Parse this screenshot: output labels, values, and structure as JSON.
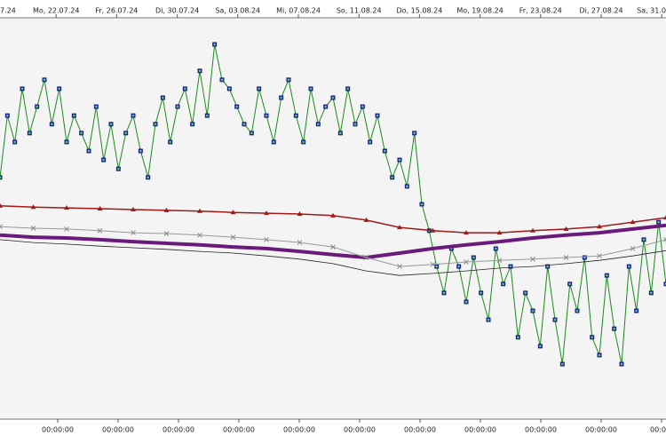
{
  "chart_data": {
    "type": "line",
    "top_axis_labels": [
      "7.24",
      "Mo, 22.07.24",
      "Fr, 26.07.24",
      "Di, 30.07.24",
      "Sa, 03.08.24",
      "Mi, 07.08.24",
      "So, 11.08.24",
      "Do, 15.08.24",
      "Mo, 19.08.24",
      "Fr, 23.08.24",
      "Di, 27.08.24",
      "Sa, 31.0"
    ],
    "bottom_axis_labels": [
      "00:00:00",
      "00:00:00",
      "00:00:00",
      "00:00:00",
      "00:00:00",
      "00:00:00",
      "00:00:00",
      "00:00:00",
      "00:00:00",
      "00:00:00",
      "00:0"
    ],
    "ylim": [
      0,
      100
    ],
    "series": [
      {
        "color": "#1a8a1a",
        "marker": "square",
        "marker_color": "#1a1aa0",
        "width": 1,
        "values": [
          59.0,
          74.2,
          67.7,
          80.8,
          69.9,
          76.4,
          83.0,
          72.1,
          80.8,
          67.7,
          74.2,
          69.9,
          65.5,
          76.4,
          63.3,
          72.1,
          61.1,
          69.9,
          74.2,
          65.5,
          59.0,
          72.1,
          78.6,
          67.7,
          76.4,
          80.8,
          72.1,
          85.2,
          74.2,
          91.7,
          83.0,
          80.8,
          76.4,
          72.1,
          69.9,
          80.8,
          74.2,
          67.7,
          78.6,
          83.0,
          74.2,
          67.7,
          80.8,
          72.1,
          76.4,
          78.6,
          69.9,
          80.8,
          72.1,
          76.4,
          67.7,
          74.2,
          65.5,
          59.0,
          63.3,
          56.8,
          69.9,
          52.4,
          45.9,
          37.1,
          30.6,
          41.5,
          37.1,
          28.4,
          39.3,
          30.6,
          24.0,
          41.5,
          32.8,
          37.1,
          19.7,
          30.6,
          26.2,
          17.5,
          37.1,
          24.0,
          13.1,
          32.8,
          26.2,
          39.3,
          19.7,
          15.3,
          34.9,
          21.8,
          13.1,
          37.1,
          26.2,
          43.7,
          30.6,
          48.0,
          32.8
        ]
      },
      {
        "color": "#a01818",
        "marker": "triangle",
        "marker_color": "#a01818",
        "width": 1.5,
        "values": [
          52.0,
          51.7,
          51.5,
          51.3,
          51.1,
          50.9,
          50.7,
          50.4,
          50.2,
          50.0,
          49.6,
          48.5,
          46.7,
          45.9,
          45.4,
          45.4,
          45.9,
          46.3,
          46.9,
          48.0,
          49.1
        ]
      },
      {
        "color": "#6a1a7a",
        "marker": "none",
        "marker_color": "#6a1a7a",
        "width": 4,
        "values": [
          44.8,
          44.3,
          44.1,
          43.7,
          43.2,
          42.8,
          42.4,
          41.9,
          41.5,
          40.8,
          40.0,
          39.3,
          40.4,
          41.5,
          42.4,
          43.2,
          44.1,
          44.8,
          45.4,
          46.3,
          47.2
        ]
      },
      {
        "color": "#999999",
        "marker": "cross",
        "marker_color": "#888888",
        "width": 1,
        "values": [
          46.9,
          46.5,
          46.3,
          45.9,
          45.4,
          45.2,
          44.8,
          44.3,
          43.7,
          43.0,
          41.9,
          39.3,
          37.1,
          37.6,
          38.2,
          38.6,
          38.9,
          39.3,
          39.7,
          41.5,
          43.7
        ]
      },
      {
        "color": "#222222",
        "marker": "none",
        "marker_color": "#222222",
        "width": 0.8,
        "values": [
          43.7,
          43.0,
          42.6,
          42.1,
          41.7,
          41.3,
          40.8,
          40.4,
          39.7,
          38.9,
          37.8,
          36.0,
          34.9,
          35.4,
          36.0,
          36.7,
          37.1,
          37.8,
          38.6,
          39.7,
          41.0
        ]
      }
    ]
  }
}
